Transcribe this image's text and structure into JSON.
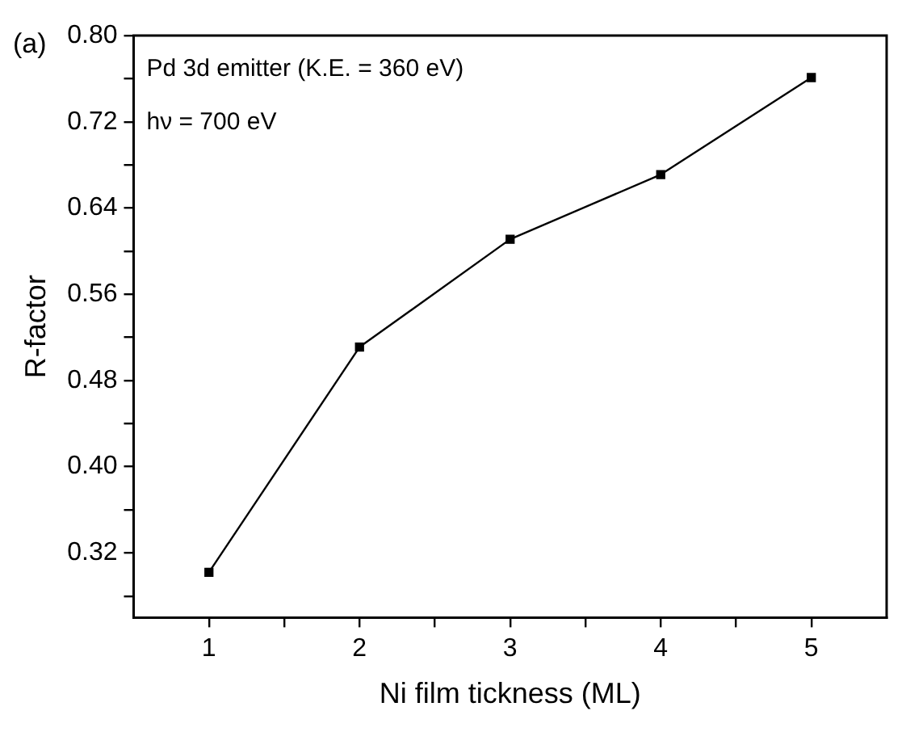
{
  "chart_data": {
    "type": "line",
    "xlabel": "Ni film tickness (ML)",
    "ylabel": "R-factor",
    "annotations": [
      "(a)",
      "Pd 3d emitter (K.E. = 360 eV)",
      "hν = 700 eV"
    ],
    "x": [
      1,
      2,
      3,
      4,
      5
    ],
    "series": [
      {
        "color": "#000000",
        "values": [
          0.302,
          0.511,
          0.611,
          0.671,
          0.761
        ]
      }
    ],
    "xlim": [
      0.5,
      5.5
    ],
    "xticks": [
      1,
      {
        "value": 1.5,
        "label": null
      },
      2,
      {
        "value": 2.5,
        "label": null
      },
      3,
      {
        "value": 3.5,
        "label": null
      },
      4,
      {
        "value": 4.5,
        "label": null
      },
      5
    ],
    "ylim": [
      0.26,
      0.8
    ],
    "yticks": [
      {
        "value": 0.28,
        "label": null
      },
      {
        "value": 0.32,
        "label": "0.32"
      },
      {
        "value": 0.36,
        "label": null
      },
      {
        "value": 0.4,
        "label": "0.40"
      },
      {
        "value": 0.44,
        "label": null
      },
      {
        "value": 0.48,
        "label": "0.48"
      },
      {
        "value": 0.52,
        "label": null
      },
      {
        "value": 0.56,
        "label": "0.56"
      },
      {
        "value": 0.6,
        "label": null
      },
      {
        "value": 0.64,
        "label": "0.64"
      },
      {
        "value": 0.68,
        "label": null
      },
      {
        "value": 0.72,
        "label": "0.72"
      },
      {
        "value": 0.76,
        "label": null
      },
      {
        "value": 0.8,
        "label": "0.80"
      }
    ],
    "grid": false,
    "legend": false,
    "marker": "square",
    "line_style": "solid"
  }
}
